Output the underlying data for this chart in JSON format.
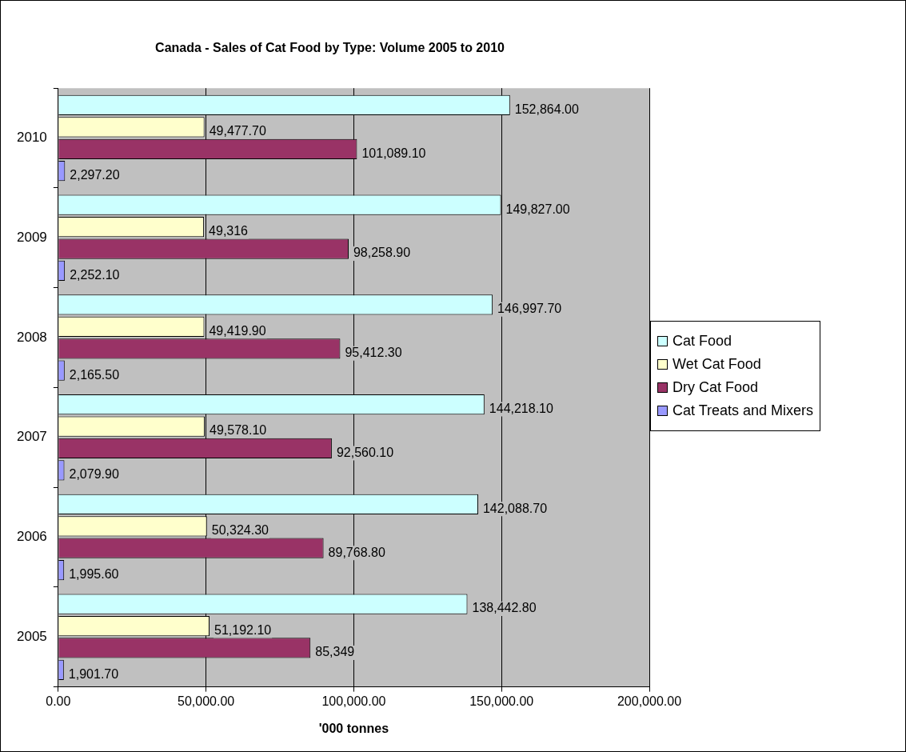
{
  "chart_data": {
    "type": "bar",
    "orientation": "horizontal",
    "title": "Canada - Sales of Cat Food by Type: Volume 2005 to 2010",
    "xlabel": "'000 tonnes",
    "categories": [
      "2010",
      "2009",
      "2008",
      "2007",
      "2006",
      "2005"
    ],
    "series": [
      {
        "name": "Cat Food",
        "color": "#ccffff",
        "values": [
          152864.0,
          149827.0,
          146997.7,
          144218.1,
          142088.7,
          138442.8
        ],
        "value_labels": [
          "152,864.00",
          "149,827.00",
          "146,997.70",
          "144,218.10",
          "142,088.70",
          "138,442.80"
        ]
      },
      {
        "name": "Wet Cat Food",
        "color": "#ffffcc",
        "values": [
          49477.7,
          49316,
          49419.9,
          49578.1,
          50324.3,
          51192.1
        ],
        "value_labels": [
          "49,477.70",
          "49,316",
          "49,419.90",
          "49,578.10",
          "50,324.30",
          "51,192.10"
        ]
      },
      {
        "name": "Dry Cat Food",
        "color": "#993366",
        "values": [
          101089.1,
          98258.9,
          95412.3,
          92560.1,
          89768.8,
          85349
        ],
        "value_labels": [
          "101,089.10",
          "98,258.90",
          "95,412.30",
          "92,560.10",
          "89,768.80",
          "85,349"
        ]
      },
      {
        "name": "Cat Treats and Mixers",
        "color": "#9999ff",
        "values": [
          2297.2,
          2252.1,
          2165.5,
          2079.9,
          1995.6,
          1901.7
        ],
        "value_labels": [
          "2,297.20",
          "2,252.10",
          "2,165.50",
          "2,079.90",
          "1,995.60",
          "1,901.70"
        ]
      }
    ],
    "xlim": [
      0,
      200000
    ],
    "xticks": [
      {
        "value": 0,
        "label": "0.00"
      },
      {
        "value": 50000,
        "label": "50,000.00"
      },
      {
        "value": 100000,
        "label": "100,000.00"
      },
      {
        "value": 150000,
        "label": "150,000.00"
      },
      {
        "value": 200000,
        "label": "200,000.00"
      }
    ],
    "grid": "x",
    "legend": "right"
  }
}
